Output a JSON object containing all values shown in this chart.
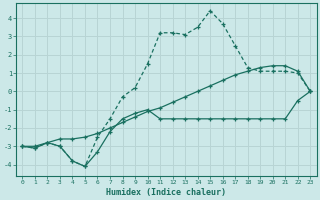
{
  "xlabel": "Humidex (Indice chaleur)",
  "bg_color": "#cce8e8",
  "grid_color": "#b8d4d4",
  "line_color": "#1a7060",
  "xlim": [
    -0.5,
    23.5
  ],
  "ylim": [
    -4.6,
    4.8
  ],
  "xticks": [
    0,
    1,
    2,
    3,
    4,
    5,
    6,
    7,
    8,
    9,
    10,
    11,
    12,
    13,
    14,
    15,
    16,
    17,
    18,
    19,
    20,
    21,
    22,
    23
  ],
  "yticks": [
    -4,
    -3,
    -2,
    -1,
    0,
    1,
    2,
    3,
    4
  ],
  "line1_x": [
    0,
    1,
    2,
    3,
    4,
    5,
    6,
    7,
    8,
    9,
    10,
    11,
    12,
    13,
    14,
    15,
    16,
    17,
    18,
    19,
    20,
    21,
    22,
    23
  ],
  "line1_y": [
    -3.0,
    -3.1,
    -2.8,
    -3.0,
    -3.8,
    -4.1,
    -3.3,
    -2.2,
    -1.5,
    -1.2,
    -1.0,
    -1.5,
    -1.5,
    -1.5,
    -1.5,
    -1.5,
    -1.5,
    -1.5,
    -1.5,
    -1.5,
    -1.5,
    -1.5,
    -0.5,
    0.0
  ],
  "line2_x": [
    0,
    1,
    2,
    3,
    4,
    5,
    6,
    7,
    8,
    9,
    10,
    11,
    12,
    13,
    14,
    15,
    16,
    17,
    18,
    19,
    20,
    21,
    22,
    23
  ],
  "line2_y": [
    -3.0,
    -3.1,
    -2.8,
    -3.0,
    -3.8,
    -4.1,
    -2.5,
    -1.5,
    -0.3,
    0.2,
    1.5,
    3.2,
    3.2,
    3.1,
    3.5,
    4.4,
    3.7,
    2.5,
    1.3,
    1.1,
    1.1,
    1.1,
    1.0,
    0.0
  ],
  "line3_x": [
    0,
    1,
    2,
    3,
    4,
    5,
    6,
    7,
    8,
    9,
    10,
    11,
    12,
    13,
    14,
    15,
    16,
    17,
    18,
    19,
    20,
    21,
    22,
    23
  ],
  "line3_y": [
    -3.0,
    -3.0,
    -2.8,
    -2.6,
    -2.6,
    -2.5,
    -2.3,
    -2.0,
    -1.7,
    -1.4,
    -1.1,
    -0.9,
    -0.6,
    -0.3,
    0.0,
    0.3,
    0.6,
    0.9,
    1.1,
    1.3,
    1.4,
    1.4,
    1.1,
    0.0
  ]
}
